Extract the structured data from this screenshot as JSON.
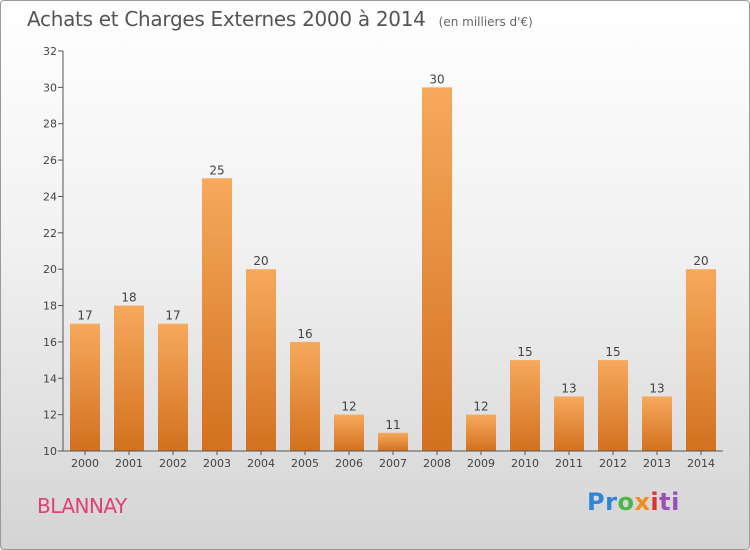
{
  "title": "Achats et Charges Externes 2000 à 2014",
  "subtitle": "(en milliers d'€)",
  "commune": "BLANNAY",
  "logo": {
    "text": "Proxiti",
    "parts": [
      "Pr",
      "o",
      "x",
      "i",
      "ti"
    ]
  },
  "colors": {
    "bar_top": "#f7a95c",
    "bar_bottom": "#d2711f",
    "commune": "#e0407a",
    "axis": "#555555"
  },
  "chart_data": {
    "type": "bar",
    "categories": [
      "2000",
      "2001",
      "2002",
      "2003",
      "2004",
      "2005",
      "2006",
      "2007",
      "2008",
      "2009",
      "2010",
      "2011",
      "2012",
      "2013",
      "2014"
    ],
    "values": [
      17,
      18,
      17,
      25,
      20,
      16,
      12,
      11,
      30,
      12,
      15,
      13,
      15,
      13,
      20
    ],
    "ylim": [
      10,
      32
    ],
    "yticks": [
      10,
      12,
      14,
      16,
      18,
      20,
      22,
      24,
      26,
      28,
      30,
      32
    ],
    "grid": false,
    "legend": "none"
  }
}
